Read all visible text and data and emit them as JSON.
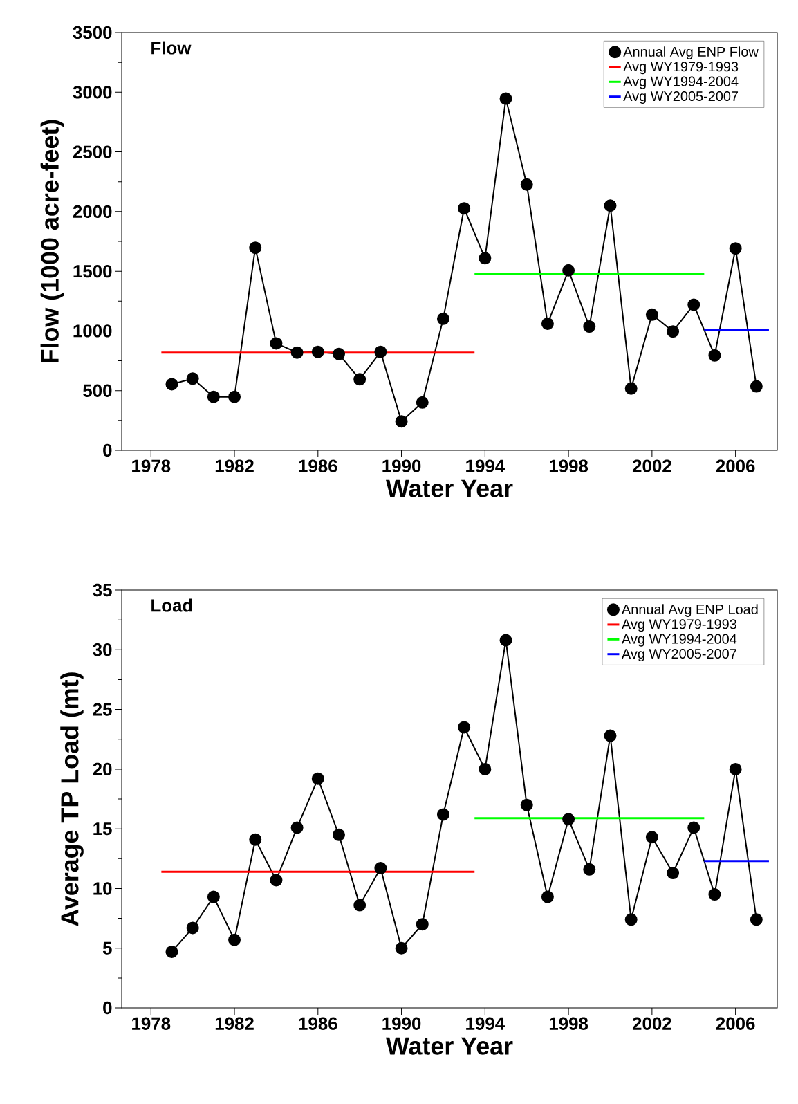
{
  "chart_data": [
    {
      "type": "line",
      "xlabel": "Water Year",
      "ylabel": "Flow (1000 acre-feet)",
      "annotations": [
        "Flow"
      ],
      "marker": "circle",
      "legend": "top right",
      "grid": false,
      "x": [
        1979,
        1980,
        1981,
        1982,
        1983,
        1984,
        1985,
        1986,
        1987,
        1988,
        1989,
        1990,
        1991,
        1992,
        1993,
        1994,
        1995,
        1996,
        1997,
        1998,
        1999,
        2000,
        2001,
        2002,
        2003,
        2004,
        2005,
        2006,
        2007
      ],
      "xlim": [
        1976.6,
        2008
      ],
      "xticks": [
        1978,
        1982,
        1986,
        1990,
        1994,
        1998,
        2002,
        2006
      ],
      "ylim": [
        0,
        3500
      ],
      "yticks": [
        0,
        500,
        1000,
        1500,
        2000,
        2500,
        3000,
        3500
      ],
      "series": [
        {
          "name": "Annual Avg ENP Flow",
          "color": "#000000",
          "values": [
            554,
            601,
            448,
            448,
            1697,
            896,
            819,
            825,
            807,
            595,
            825,
            242,
            401,
            1102,
            2027,
            1609,
            2946,
            2227,
            1061,
            1508,
            1037,
            2050,
            518,
            1137,
            996,
            1220,
            795,
            1691,
            536
          ]
        },
        {
          "name": "Avg WY1979-1993",
          "color": "#ff0000",
          "marker": "none",
          "x": [
            1978.5,
            1993.5
          ],
          "values": [
            819,
            819
          ]
        },
        {
          "name": "Avg WY1994-2004",
          "color": "#00ff00",
          "marker": "none",
          "x": [
            1993.5,
            2004.5
          ],
          "values": [
            1479,
            1479
          ]
        },
        {
          "name": "Avg WY2005-2007",
          "color": "#0000ff",
          "marker": "none",
          "x": [
            2004.5,
            2007.6
          ],
          "values": [
            1008,
            1008
          ]
        }
      ]
    },
    {
      "type": "line",
      "xlabel": "Water Year",
      "ylabel": "Average TP Load (mt)",
      "annotations": [
        "Load"
      ],
      "marker": "circle",
      "legend": "top right",
      "grid": false,
      "x": [
        1979,
        1980,
        1981,
        1982,
        1983,
        1984,
        1985,
        1986,
        1987,
        1988,
        1989,
        1990,
        1991,
        1992,
        1993,
        1994,
        1995,
        1996,
        1997,
        1998,
        1999,
        2000,
        2001,
        2002,
        2003,
        2004,
        2005,
        2006,
        2007
      ],
      "xlim": [
        1976.6,
        2008
      ],
      "xticks": [
        1978,
        1982,
        1986,
        1990,
        1994,
        1998,
        2002,
        2006
      ],
      "ylim": [
        0,
        35
      ],
      "yticks": [
        0,
        5,
        10,
        15,
        20,
        25,
        30,
        35
      ],
      "series": [
        {
          "name": "Annual Avg ENP Load",
          "color": "#000000",
          "values": [
            4.7,
            6.7,
            9.3,
            5.7,
            14.1,
            10.7,
            15.1,
            19.2,
            14.5,
            8.6,
            11.7,
            5.0,
            7.0,
            16.2,
            23.5,
            20.0,
            30.8,
            17.0,
            9.3,
            15.8,
            11.6,
            22.8,
            7.4,
            14.3,
            11.3,
            15.1,
            9.5,
            20.0,
            7.4
          ]
        },
        {
          "name": "Avg WY1979-1993",
          "color": "#ff0000",
          "marker": "none",
          "x": [
            1978.5,
            1993.5
          ],
          "values": [
            11.4,
            11.4
          ]
        },
        {
          "name": "Avg WY1994-2004",
          "color": "#00ff00",
          "marker": "none",
          "x": [
            1993.5,
            2004.5
          ],
          "values": [
            15.9,
            15.9
          ]
        },
        {
          "name": "Avg WY2005-2007",
          "color": "#0000ff",
          "marker": "none",
          "x": [
            2004.5,
            2007.6
          ],
          "values": [
            12.3,
            12.3
          ]
        }
      ]
    }
  ]
}
